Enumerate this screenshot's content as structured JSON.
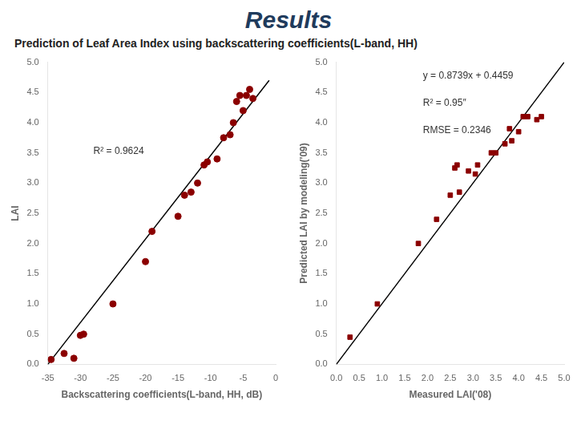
{
  "title": "Results",
  "subtitle": "Prediction of Leaf Area Index using backscattering coefficients(L-band, HH)",
  "chart_data": [
    {
      "type": "scatter",
      "xlabel": "Backscattering coefficients(L-band, HH, dB)",
      "ylabel": "LAI",
      "xlim": [
        -35,
        0
      ],
      "ylim": [
        0.0,
        5.0
      ],
      "xticks": [
        -35,
        -30,
        -25,
        -20,
        -15,
        -10,
        -5,
        0
      ],
      "yticks": [
        {
          "value": 0.0,
          "label": "0.0"
        },
        {
          "value": 0.5,
          "label": "0.5"
        },
        {
          "value": 1.0,
          "label": "1.0"
        },
        {
          "value": 1.5,
          "label": "1.5"
        },
        {
          "value": 2.0,
          "label": "2.0"
        },
        {
          "value": 2.5,
          "label": "2.5"
        },
        {
          "value": 3.0,
          "label": "3.0"
        },
        {
          "value": 3.5,
          "label": "3.5"
        },
        {
          "value": 4.0,
          "label": "4.0"
        },
        {
          "value": 4.5,
          "label": "4.5"
        },
        {
          "value": 5.0,
          "label": "5.0"
        }
      ],
      "grid": false,
      "annotations": [
        "R² = 0.9624"
      ],
      "series": [
        {
          "type": "scatter",
          "marker": "circle",
          "color": "#8B0000",
          "x": [
            -34.5,
            -32.5,
            -31.0,
            -30.0,
            -29.5,
            -25.0,
            -20.0,
            -19.0,
            -15.0,
            -14.0,
            -13.0,
            -12.0,
            -11.0,
            -10.5,
            -9.0,
            -8.0,
            -7.0,
            -6.5,
            -6.0,
            -5.5,
            -5.0,
            -4.5,
            -4.0,
            -3.5
          ],
          "values": [
            0.08,
            0.18,
            0.1,
            0.48,
            0.5,
            1.0,
            1.7,
            2.2,
            2.45,
            2.8,
            2.85,
            3.0,
            3.3,
            3.35,
            3.4,
            3.75,
            3.8,
            4.0,
            4.35,
            4.45,
            4.2,
            4.45,
            4.55,
            4.4
          ]
        },
        {
          "type": "line",
          "color": "black",
          "x": [
            -35,
            -1
          ],
          "values": [
            0.0,
            4.7
          ]
        }
      ]
    },
    {
      "type": "scatter",
      "xlabel": "Measured LAI('08)",
      "ylabel": "Predicted LAI by modeling('09)",
      "xlim": [
        0.0,
        5.0
      ],
      "ylim": [
        0.0,
        5.0
      ],
      "xticks": [
        {
          "value": 0.0,
          "label": "0.0"
        },
        {
          "value": 0.5,
          "label": "0.5"
        },
        {
          "value": 1.0,
          "label": "1.0"
        },
        {
          "value": 1.5,
          "label": "1.5"
        },
        {
          "value": 2.0,
          "label": "2.0"
        },
        {
          "value": 2.5,
          "label": "2.5"
        },
        {
          "value": 3.0,
          "label": "3.0"
        },
        {
          "value": 3.5,
          "label": "3.5"
        },
        {
          "value": 4.0,
          "label": "4.0"
        },
        {
          "value": 4.5,
          "label": "4.5"
        },
        {
          "value": 5.0,
          "label": "5.0"
        }
      ],
      "yticks": [
        {
          "value": 0.0,
          "label": "0.0"
        },
        {
          "value": 0.5,
          "label": "0.5"
        },
        {
          "value": 1.0,
          "label": "1.0"
        },
        {
          "value": 1.5,
          "label": "1.5"
        },
        {
          "value": 2.0,
          "label": "2.0"
        },
        {
          "value": 2.5,
          "label": "2.5"
        },
        {
          "value": 3.0,
          "label": "3.0"
        },
        {
          "value": 3.5,
          "label": "3.5"
        },
        {
          "value": 4.0,
          "label": "4.0"
        },
        {
          "value": 4.5,
          "label": "4.5"
        },
        {
          "value": 5.0,
          "label": "5.0"
        }
      ],
      "grid": false,
      "annotations": [
        "y = 0.8739x + 0.4459",
        "R² = 0.95″",
        "RMSE = 0.2346"
      ],
      "series": [
        {
          "type": "scatter",
          "marker": "square",
          "color": "#8B0000",
          "x": [
            0.3,
            0.9,
            1.8,
            2.2,
            2.5,
            2.6,
            2.65,
            2.7,
            2.9,
            3.05,
            3.1,
            3.4,
            3.5,
            3.7,
            3.8,
            3.85,
            4.0,
            4.1,
            4.2,
            4.4,
            4.5
          ],
          "values": [
            0.45,
            1.0,
            2.0,
            2.4,
            2.8,
            3.25,
            3.3,
            2.85,
            3.2,
            3.15,
            3.3,
            3.5,
            3.5,
            3.65,
            3.9,
            3.7,
            3.85,
            4.1,
            4.1,
            4.05,
            4.1
          ]
        },
        {
          "type": "line",
          "color": "black",
          "x": [
            0.0,
            5.0
          ],
          "values": [
            0.0,
            5.0
          ]
        }
      ]
    }
  ]
}
